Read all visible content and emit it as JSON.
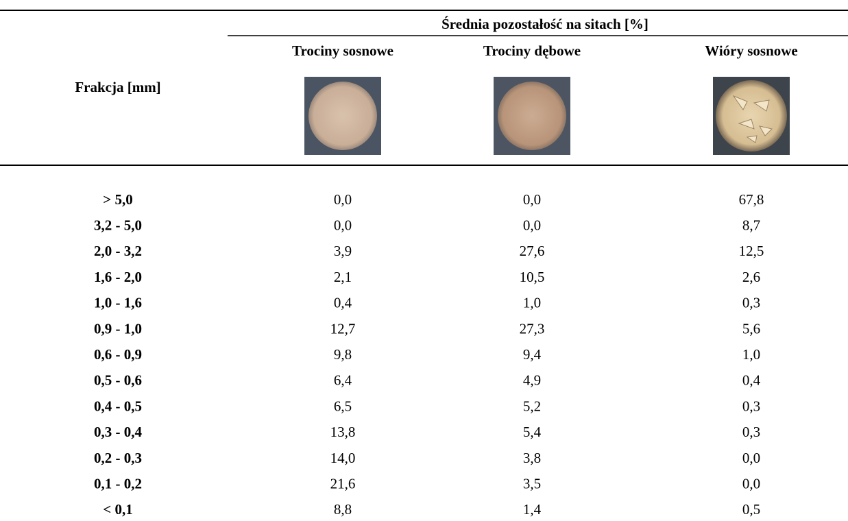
{
  "table": {
    "row_header": "Frakcja [mm]",
    "group_header": "Średnia pozostałość na sitach [%]",
    "columns": [
      "Trociny sosnowe",
      "Trociny dębowe",
      "Wióry sosnowe"
    ],
    "rows": [
      [
        "> 5,0",
        "0,0",
        "0,0",
        "67,8"
      ],
      [
        "3,2 - 5,0",
        "0,0",
        "0,0",
        "8,7"
      ],
      [
        "2,0 - 3,2",
        "3,9",
        "27,6",
        "12,5"
      ],
      [
        "1,6 - 2,0",
        "2,1",
        "10,5",
        "2,6"
      ],
      [
        "1,0 - 1,6",
        "0,4",
        "1,0",
        "0,3"
      ],
      [
        "0,9 - 1,0",
        "12,7",
        "27,3",
        "5,6"
      ],
      [
        "0,6 - 0,9",
        "9,8",
        "9,4",
        "1,0"
      ],
      [
        "0,5 - 0,6",
        "6,4",
        "4,9",
        "0,4"
      ],
      [
        "0,4 - 0,5",
        "6,5",
        "5,2",
        "0,3"
      ],
      [
        "0,3 - 0,4",
        "13,8",
        "5,4",
        "0,3"
      ],
      [
        "0,2 - 0,3",
        "14,0",
        "3,8",
        "0,0"
      ],
      [
        "0,1 - 0,2",
        "21,6",
        "3,5",
        "0,0"
      ],
      [
        "< 0,1",
        "8,8",
        "1,4",
        "0,5"
      ]
    ]
  }
}
